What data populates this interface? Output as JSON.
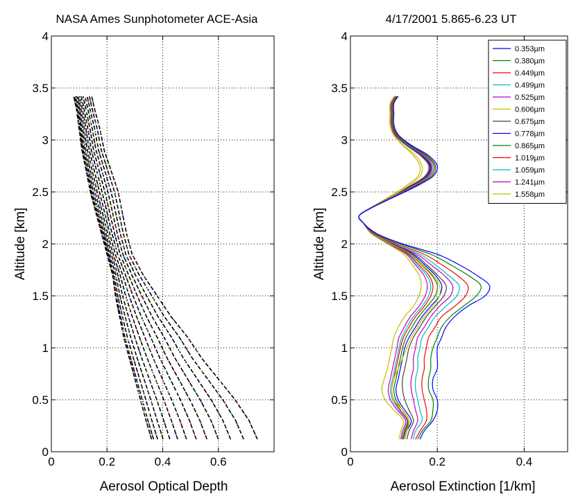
{
  "chart_data": [
    {
      "type": "scatter",
      "title": "NASA Ames Sunphotometer ACE-Asia",
      "xlabel": "Aerosol Optical Depth",
      "ylabel": "Altitude [km]",
      "xlim": [
        0,
        0.8
      ],
      "ylim": [
        0,
        4
      ],
      "xticks": [
        0,
        0.2,
        0.4,
        0.6
      ],
      "xtick_labels": [
        "0",
        "0.2",
        "0.4",
        "0.6"
      ],
      "yticks": [
        0,
        0.5,
        1,
        1.5,
        2,
        2.5,
        3,
        3.5,
        4
      ],
      "ytick_labels": [
        "0",
        "0.5",
        "1",
        "1.5",
        "2",
        "2.5",
        "3",
        "3.5",
        "4"
      ],
      "grid": true,
      "marker": "dashed point traces, one per wavelength",
      "series_color": "#000000",
      "profile": {
        "y": [
          0.12,
          0.3,
          0.5,
          0.7,
          0.9,
          1.1,
          1.3,
          1.5,
          1.7,
          1.9,
          2.1,
          2.3,
          2.5,
          2.7,
          2.9,
          3.1,
          3.3,
          3.42
        ],
        "x_min": [
          0.36,
          0.34,
          0.32,
          0.3,
          0.28,
          0.26,
          0.245,
          0.23,
          0.22,
          0.2,
          0.18,
          0.16,
          0.14,
          0.125,
          0.11,
          0.1,
          0.09,
          0.08
        ],
        "x_max": [
          0.74,
          0.71,
          0.66,
          0.6,
          0.54,
          0.49,
          0.43,
          0.38,
          0.33,
          0.29,
          0.27,
          0.255,
          0.24,
          0.215,
          0.19,
          0.175,
          0.155,
          0.145
        ]
      },
      "n_traces": 13
    },
    {
      "type": "line",
      "title": "4/17/2001 5.865-6.23  UT",
      "xlabel": "Aerosol Extinction [1/km]",
      "ylabel": "Altitude [km]",
      "xlim": [
        0,
        0.5
      ],
      "ylim": [
        0,
        4
      ],
      "xticks": [
        0,
        0.2,
        0.4
      ],
      "xtick_labels": [
        "0",
        "0.2",
        "0.4"
      ],
      "yticks": [
        0,
        0.5,
        1,
        1.5,
        2,
        2.5,
        3,
        3.5,
        4
      ],
      "ytick_labels": [
        "0",
        "0.5",
        "1",
        "1.5",
        "2",
        "2.5",
        "3",
        "3.5",
        "4"
      ],
      "grid": true,
      "legend_position": "top-right",
      "y": [
        0.12,
        0.2,
        0.3,
        0.4,
        0.5,
        0.6,
        0.7,
        0.8,
        0.9,
        1.0,
        1.1,
        1.2,
        1.3,
        1.4,
        1.5,
        1.6,
        1.7,
        1.8,
        1.9,
        2.0,
        2.1,
        2.2,
        2.27,
        2.35,
        2.45,
        2.55,
        2.65,
        2.75,
        2.85,
        2.95,
        3.05,
        3.15,
        3.25,
        3.35,
        3.42
      ],
      "series": [
        {
          "name": "0.353µm",
          "color": "#0000ff",
          "values": [
            0.16,
            0.17,
            0.19,
            0.2,
            0.2,
            0.19,
            0.19,
            0.2,
            0.2,
            0.2,
            0.21,
            0.22,
            0.24,
            0.27,
            0.31,
            0.32,
            0.29,
            0.25,
            0.2,
            0.12,
            0.06,
            0.03,
            0.02,
            0.05,
            0.1,
            0.15,
            0.19,
            0.2,
            0.18,
            0.14,
            0.11,
            0.1,
            0.1,
            0.1,
            0.11
          ]
        },
        {
          "name": "0.380µm",
          "color": "#008000",
          "values": [
            0.155,
            0.165,
            0.185,
            0.19,
            0.19,
            0.18,
            0.18,
            0.185,
            0.185,
            0.19,
            0.2,
            0.21,
            0.23,
            0.26,
            0.29,
            0.3,
            0.27,
            0.23,
            0.185,
            0.115,
            0.058,
            0.03,
            0.02,
            0.05,
            0.1,
            0.148,
            0.187,
            0.196,
            0.176,
            0.137,
            0.108,
            0.098,
            0.098,
            0.098,
            0.108
          ]
        },
        {
          "name": "0.449µm",
          "color": "#ff0000",
          "values": [
            0.15,
            0.16,
            0.175,
            0.175,
            0.17,
            0.165,
            0.165,
            0.17,
            0.17,
            0.175,
            0.18,
            0.195,
            0.21,
            0.24,
            0.265,
            0.27,
            0.245,
            0.21,
            0.17,
            0.108,
            0.055,
            0.03,
            0.02,
            0.05,
            0.098,
            0.145,
            0.183,
            0.193,
            0.173,
            0.135,
            0.106,
            0.096,
            0.096,
            0.096,
            0.106
          ]
        },
        {
          "name": "0.499µm",
          "color": "#00bfbf",
          "values": [
            0.145,
            0.15,
            0.165,
            0.16,
            0.155,
            0.15,
            0.15,
            0.155,
            0.155,
            0.16,
            0.165,
            0.18,
            0.195,
            0.22,
            0.245,
            0.25,
            0.225,
            0.195,
            0.16,
            0.103,
            0.053,
            0.03,
            0.02,
            0.049,
            0.096,
            0.142,
            0.18,
            0.19,
            0.17,
            0.133,
            0.105,
            0.095,
            0.095,
            0.095,
            0.105
          ]
        },
        {
          "name": "0.525µm",
          "color": "#bf00bf",
          "values": [
            0.14,
            0.145,
            0.155,
            0.15,
            0.145,
            0.14,
            0.14,
            0.145,
            0.145,
            0.15,
            0.155,
            0.17,
            0.185,
            0.205,
            0.23,
            0.235,
            0.215,
            0.185,
            0.153,
            0.1,
            0.052,
            0.03,
            0.02,
            0.049,
            0.095,
            0.14,
            0.178,
            0.187,
            0.168,
            0.131,
            0.104,
            0.094,
            0.094,
            0.094,
            0.104
          ]
        },
        {
          "name": "0.606µm",
          "color": "#bfbf00",
          "values": [
            0.125,
            0.13,
            0.135,
            0.12,
            0.1,
            0.095,
            0.1,
            0.11,
            0.12,
            0.13,
            0.14,
            0.155,
            0.17,
            0.19,
            0.205,
            0.205,
            0.19,
            0.165,
            0.14,
            0.093,
            0.05,
            0.03,
            0.02,
            0.048,
            0.092,
            0.13,
            0.16,
            0.165,
            0.15,
            0.122,
            0.1,
            0.092,
            0.092,
            0.092,
            0.102
          ]
        },
        {
          "name": "0.675µm",
          "color": "#404040",
          "values": [
            0.13,
            0.135,
            0.145,
            0.135,
            0.125,
            0.12,
            0.12,
            0.125,
            0.13,
            0.135,
            0.145,
            0.16,
            0.175,
            0.195,
            0.215,
            0.22,
            0.2,
            0.175,
            0.147,
            0.097,
            0.051,
            0.03,
            0.02,
            0.048,
            0.094,
            0.138,
            0.176,
            0.185,
            0.166,
            0.13,
            0.103,
            0.094,
            0.094,
            0.094,
            0.104
          ]
        },
        {
          "name": "0.778µm",
          "color": "#0000ff",
          "values": [
            0.125,
            0.13,
            0.14,
            0.125,
            0.11,
            0.105,
            0.11,
            0.115,
            0.12,
            0.125,
            0.135,
            0.15,
            0.165,
            0.185,
            0.205,
            0.21,
            0.195,
            0.17,
            0.143,
            0.095,
            0.05,
            0.03,
            0.02,
            0.048,
            0.093,
            0.137,
            0.175,
            0.184,
            0.165,
            0.13,
            0.103,
            0.094,
            0.094,
            0.094,
            0.104
          ]
        },
        {
          "name": "0.865µm",
          "color": "#008000",
          "values": [
            0.122,
            0.127,
            0.135,
            0.12,
            0.105,
            0.1,
            0.105,
            0.11,
            0.115,
            0.12,
            0.128,
            0.142,
            0.157,
            0.177,
            0.195,
            0.2,
            0.187,
            0.163,
            0.138,
            0.093,
            0.05,
            0.03,
            0.02,
            0.048,
            0.093,
            0.136,
            0.174,
            0.183,
            0.164,
            0.129,
            0.103,
            0.094,
            0.094,
            0.094,
            0.104
          ]
        },
        {
          "name": "1.019µm",
          "color": "#ff0000",
          "values": [
            0.12,
            0.125,
            0.132,
            0.115,
            0.1,
            0.095,
            0.1,
            0.105,
            0.11,
            0.115,
            0.122,
            0.135,
            0.15,
            0.17,
            0.185,
            0.19,
            0.18,
            0.157,
            0.134,
            0.091,
            0.049,
            0.03,
            0.02,
            0.048,
            0.092,
            0.135,
            0.173,
            0.182,
            0.163,
            0.129,
            0.102,
            0.093,
            0.093,
            0.093,
            0.103
          ]
        },
        {
          "name": "1.059µm",
          "color": "#00bfbf",
          "values": [
            0.118,
            0.123,
            0.13,
            0.112,
            0.097,
            0.092,
            0.097,
            0.102,
            0.107,
            0.112,
            0.118,
            0.13,
            0.145,
            0.165,
            0.18,
            0.185,
            0.175,
            0.153,
            0.132,
            0.09,
            0.049,
            0.03,
            0.02,
            0.048,
            0.092,
            0.135,
            0.172,
            0.181,
            0.162,
            0.128,
            0.102,
            0.093,
            0.093,
            0.093,
            0.103
          ]
        },
        {
          "name": "1.241µm",
          "color": "#bf00bf",
          "values": [
            0.116,
            0.12,
            0.127,
            0.108,
            0.092,
            0.087,
            0.092,
            0.097,
            0.102,
            0.107,
            0.112,
            0.124,
            0.138,
            0.158,
            0.172,
            0.177,
            0.169,
            0.149,
            0.129,
            0.089,
            0.049,
            0.03,
            0.02,
            0.048,
            0.091,
            0.134,
            0.171,
            0.18,
            0.161,
            0.128,
            0.102,
            0.093,
            0.093,
            0.093,
            0.103
          ]
        },
        {
          "name": "1.558µm",
          "color": "#bfbf00",
          "values": [
            0.112,
            0.116,
            0.122,
            0.1,
            0.08,
            0.072,
            0.078,
            0.085,
            0.09,
            0.095,
            0.1,
            0.11,
            0.125,
            0.145,
            0.158,
            0.163,
            0.158,
            0.142,
            0.123,
            0.086,
            0.048,
            0.03,
            0.02,
            0.047,
            0.088,
            0.125,
            0.155,
            0.16,
            0.145,
            0.12,
            0.099,
            0.091,
            0.091,
            0.091,
            0.101
          ]
        }
      ]
    }
  ]
}
